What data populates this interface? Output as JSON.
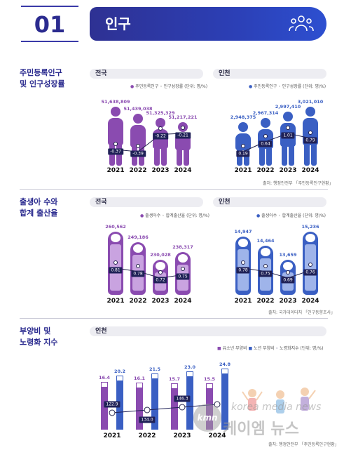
{
  "header": {
    "number": "01",
    "title": "인구",
    "icon": "people-group-icon"
  },
  "colors": {
    "national": "#8a4bb0",
    "incheon": "#3a5fc3",
    "dark": "#1f2157",
    "brand": "#2b2b8f"
  },
  "sections": {
    "population": {
      "label_line1": "주민등록인구",
      "label_line2": "및 인구성장률",
      "national": {
        "title": "전국",
        "legend": "주민등록인구 ◦ 인구성장률 (단위: 명/%)",
        "years": [
          "2021",
          "2022",
          "2023",
          "2024"
        ],
        "values": [
          "51,638,809",
          "51,439,038",
          "51,325,329",
          "51,217,221"
        ],
        "rates": [
          "-0.37",
          "-0.39",
          "-0.22",
          "-0.21"
        ]
      },
      "incheon": {
        "title": "인천",
        "legend": "주민등록인구 ◦ 인구성장률 (단위: 명/%)",
        "years": [
          "2021",
          "2022",
          "2023",
          "2024"
        ],
        "values": [
          "2,948,375",
          "2,967,314",
          "2,997,410",
          "3,021,010"
        ],
        "rates": [
          "0.19",
          "0.64",
          "1.01",
          "0.79"
        ]
      },
      "source": "출처: 행정안전부 「주민등록인구현황」"
    },
    "births": {
      "label_line1": "출생아 수와",
      "label_line2": "합계 출산율",
      "national": {
        "title": "전국",
        "legend": "출생아수 ◦ 합계출산율 (단위: 명/%)",
        "years": [
          "2021",
          "2022",
          "2023",
          "2024"
        ],
        "values": [
          "260,562",
          "249,186",
          "230,028",
          "238,317"
        ],
        "rates": [
          "0.81",
          "0.78",
          "0.72",
          "0.75"
        ]
      },
      "incheon": {
        "title": "인천",
        "legend": "출생아수 ◦ 합계출산율 (단위: 명/%)",
        "years": [
          "2021",
          "2022",
          "2023",
          "2024"
        ],
        "values": [
          "14,947",
          "14,464",
          "13,659",
          "15,236"
        ],
        "rates": [
          "0.78",
          "0.75",
          "0.69",
          "0.76"
        ]
      },
      "source": "출처: 국가데이터처 「인구동향조사」"
    },
    "dependency": {
      "label_line1": "부양비 및",
      "label_line2": "노령화 지수",
      "incheon": {
        "title": "인천",
        "legend_youth": "유소년 부양비",
        "legend_elderly": "노년 부양비",
        "legend_aging": "노령화지수 (단위: 명/%)",
        "years": [
          "2021",
          "2022",
          "2023",
          "2024"
        ],
        "youth": [
          "16.4",
          "16.1",
          "15.7",
          "15.5"
        ],
        "elderly": [
          "20.2",
          "21.5",
          "23.0",
          "24.8"
        ],
        "aging": [
          "122.9",
          "134.0",
          "146.3",
          ""
        ]
      },
      "source": "출처: 행정안전부 「주민등록인구현황」"
    }
  },
  "watermark": {
    "logo": "kmn",
    "line1": "korea media news",
    "line2": "케이엠 뉴스"
  }
}
